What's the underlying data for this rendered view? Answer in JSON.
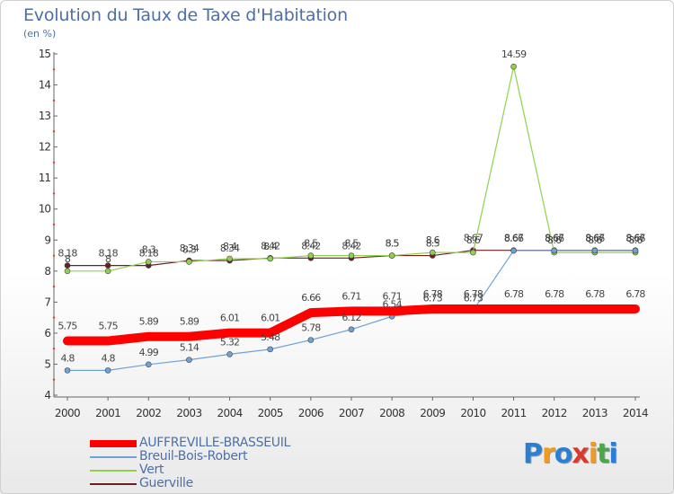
{
  "title": "Evolution du Taux de Taxe d'Habitation",
  "unit_label": "(en %)",
  "logo": {
    "chars": [
      "P",
      "r",
      "o",
      "x",
      "i",
      "t",
      "i"
    ],
    "colors": [
      "#2a7fd4",
      "#f29a1f",
      "#2a7fd4",
      "#d93a2b",
      "#f29a1f",
      "#49a948",
      "#2a7fd4"
    ]
  },
  "chart_data": {
    "type": "line",
    "x": [
      "2000",
      "2001",
      "2002",
      "2003",
      "2004",
      "2005",
      "2006",
      "2007",
      "2008",
      "2009",
      "2010",
      "2011",
      "2012",
      "2013",
      "2014"
    ],
    "ylim": [
      4,
      15
    ],
    "yticks": [
      "4",
      "5",
      "6",
      "7",
      "8",
      "9",
      "10",
      "11",
      "12",
      "13",
      "14",
      "15"
    ],
    "grid": false,
    "legend_position": "bottom-left",
    "series": [
      {
        "name": "Guerville",
        "color": "#6b1f1f",
        "values": [
          8.18,
          8.18,
          8.18,
          8.34,
          8.34,
          8.42,
          8.42,
          8.42,
          8.5,
          8.5,
          8.67,
          8.67,
          8.67,
          8.67,
          8.67
        ],
        "labels": [
          "8.18",
          "8.18",
          "8.18",
          "8.34",
          "8.34",
          "8.42",
          "8.42",
          "8.42",
          "8.5",
          "8.5",
          "8.67",
          "8.67",
          "8.67",
          "8.67",
          "8.67"
        ]
      },
      {
        "name": "Vert",
        "color": "#8fd14f",
        "values": [
          8,
          8,
          8.3,
          8.3,
          8.4,
          8.4,
          8.5,
          8.5,
          8.5,
          8.6,
          8.6,
          14.59,
          8.6,
          8.6,
          8.6
        ],
        "labels": [
          "8",
          "8",
          "8.3",
          "8.3",
          "8.4",
          "8.4",
          "8.5",
          "8.5",
          "8.5",
          "8.6",
          "8.6",
          "14.59",
          "8.6",
          "8.6",
          "8.6"
        ]
      },
      {
        "name": "Breuil-Bois-Robert",
        "color": "#6fa3d6",
        "values": [
          4.8,
          4.8,
          4.99,
          5.14,
          5.32,
          5.48,
          5.78,
          6.12,
          6.54,
          6.73,
          6.73,
          8.66,
          8.66,
          8.66,
          8.66
        ],
        "labels": [
          "4.8",
          "4.8",
          "4.99",
          "5.14",
          "5.32",
          "5.48",
          "5.78",
          "6.12",
          "6.54",
          "6.73",
          "6.73",
          "8.66",
          "8.66",
          "8.66",
          "8.66"
        ]
      },
      {
        "name": "AUFFREVILLE-BRASSEUIL",
        "color": "#ff0000",
        "values": [
          5.75,
          5.75,
          5.89,
          5.89,
          6.01,
          6.01,
          6.66,
          6.71,
          6.71,
          6.78,
          6.78,
          6.78,
          6.78,
          6.78,
          6.78
        ],
        "labels": [
          "5.75",
          "5.75",
          "5.89",
          "5.89",
          "6.01",
          "6.01",
          "6.66",
          "6.71",
          "6.71",
          "6.78",
          "6.78",
          "6.78",
          "6.78",
          "6.78",
          "6.78"
        ]
      }
    ],
    "legend_order": [
      "AUFFREVILLE-BRASSEUIL",
      "Breuil-Bois-Robert",
      "Vert",
      "Guerville"
    ]
  }
}
